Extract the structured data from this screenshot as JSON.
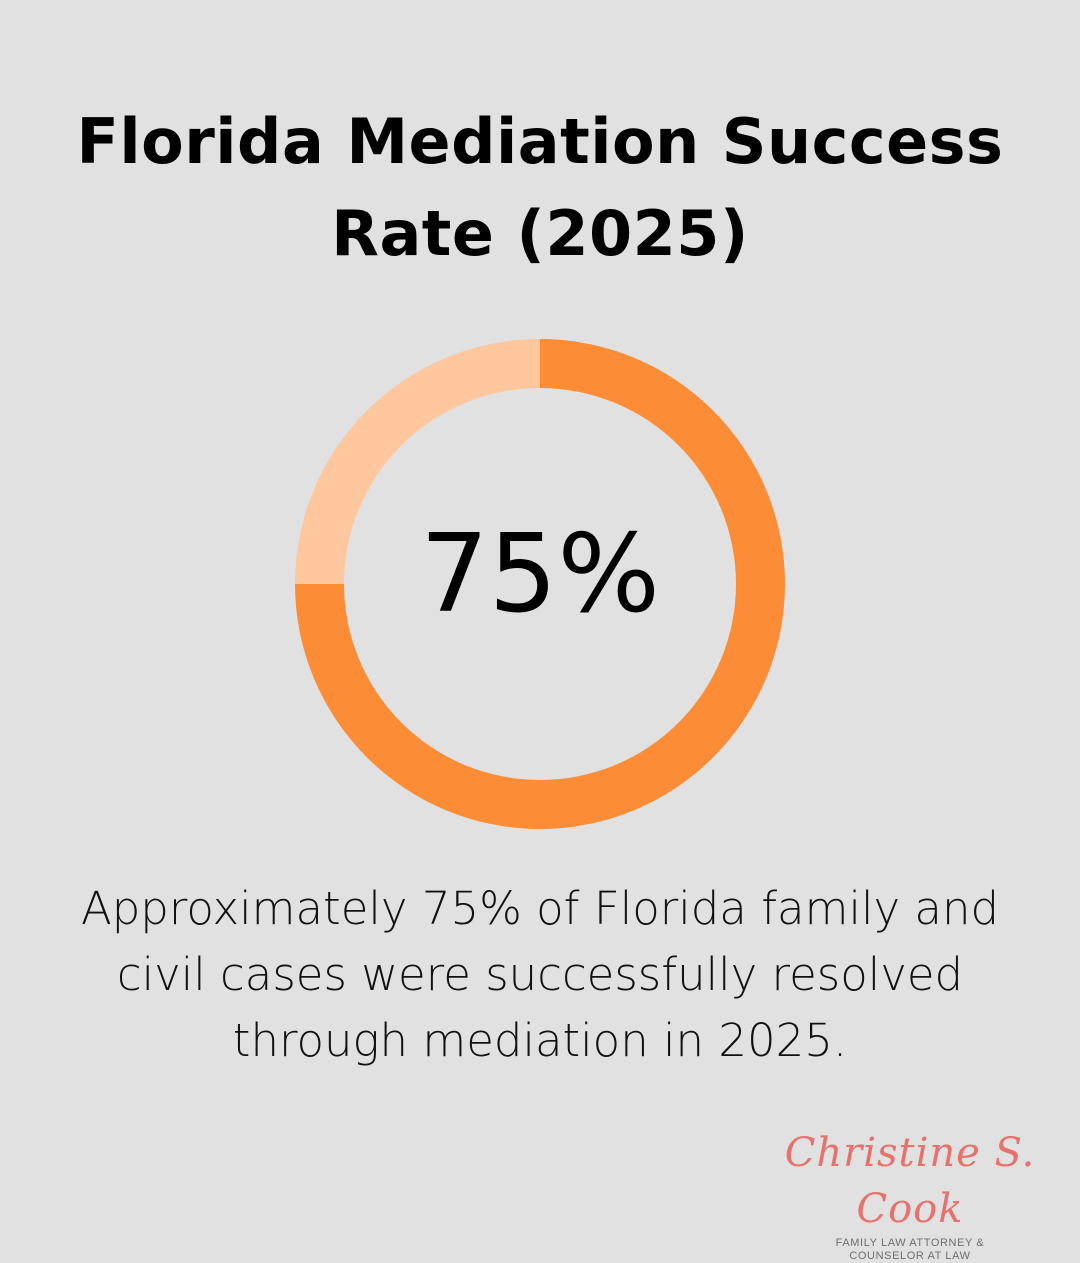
{
  "chart_data": {
    "type": "pie",
    "title": "Florida Mediation Success Rate (2025)",
    "center_label": "75%",
    "slices": [
      {
        "value": 75,
        "color": "#fd8c37"
      },
      {
        "value": 25,
        "color": "#fec79d"
      }
    ],
    "description": "Approximately 75% of Florida family and civil cases were successfully resolved through mediation in 2025."
  },
  "logo": {
    "name": "Christine S. Cook",
    "tagline_1": "FAMILY LAW ATTORNEY &",
    "tagline_2": "COUNSELOR AT LAW"
  }
}
